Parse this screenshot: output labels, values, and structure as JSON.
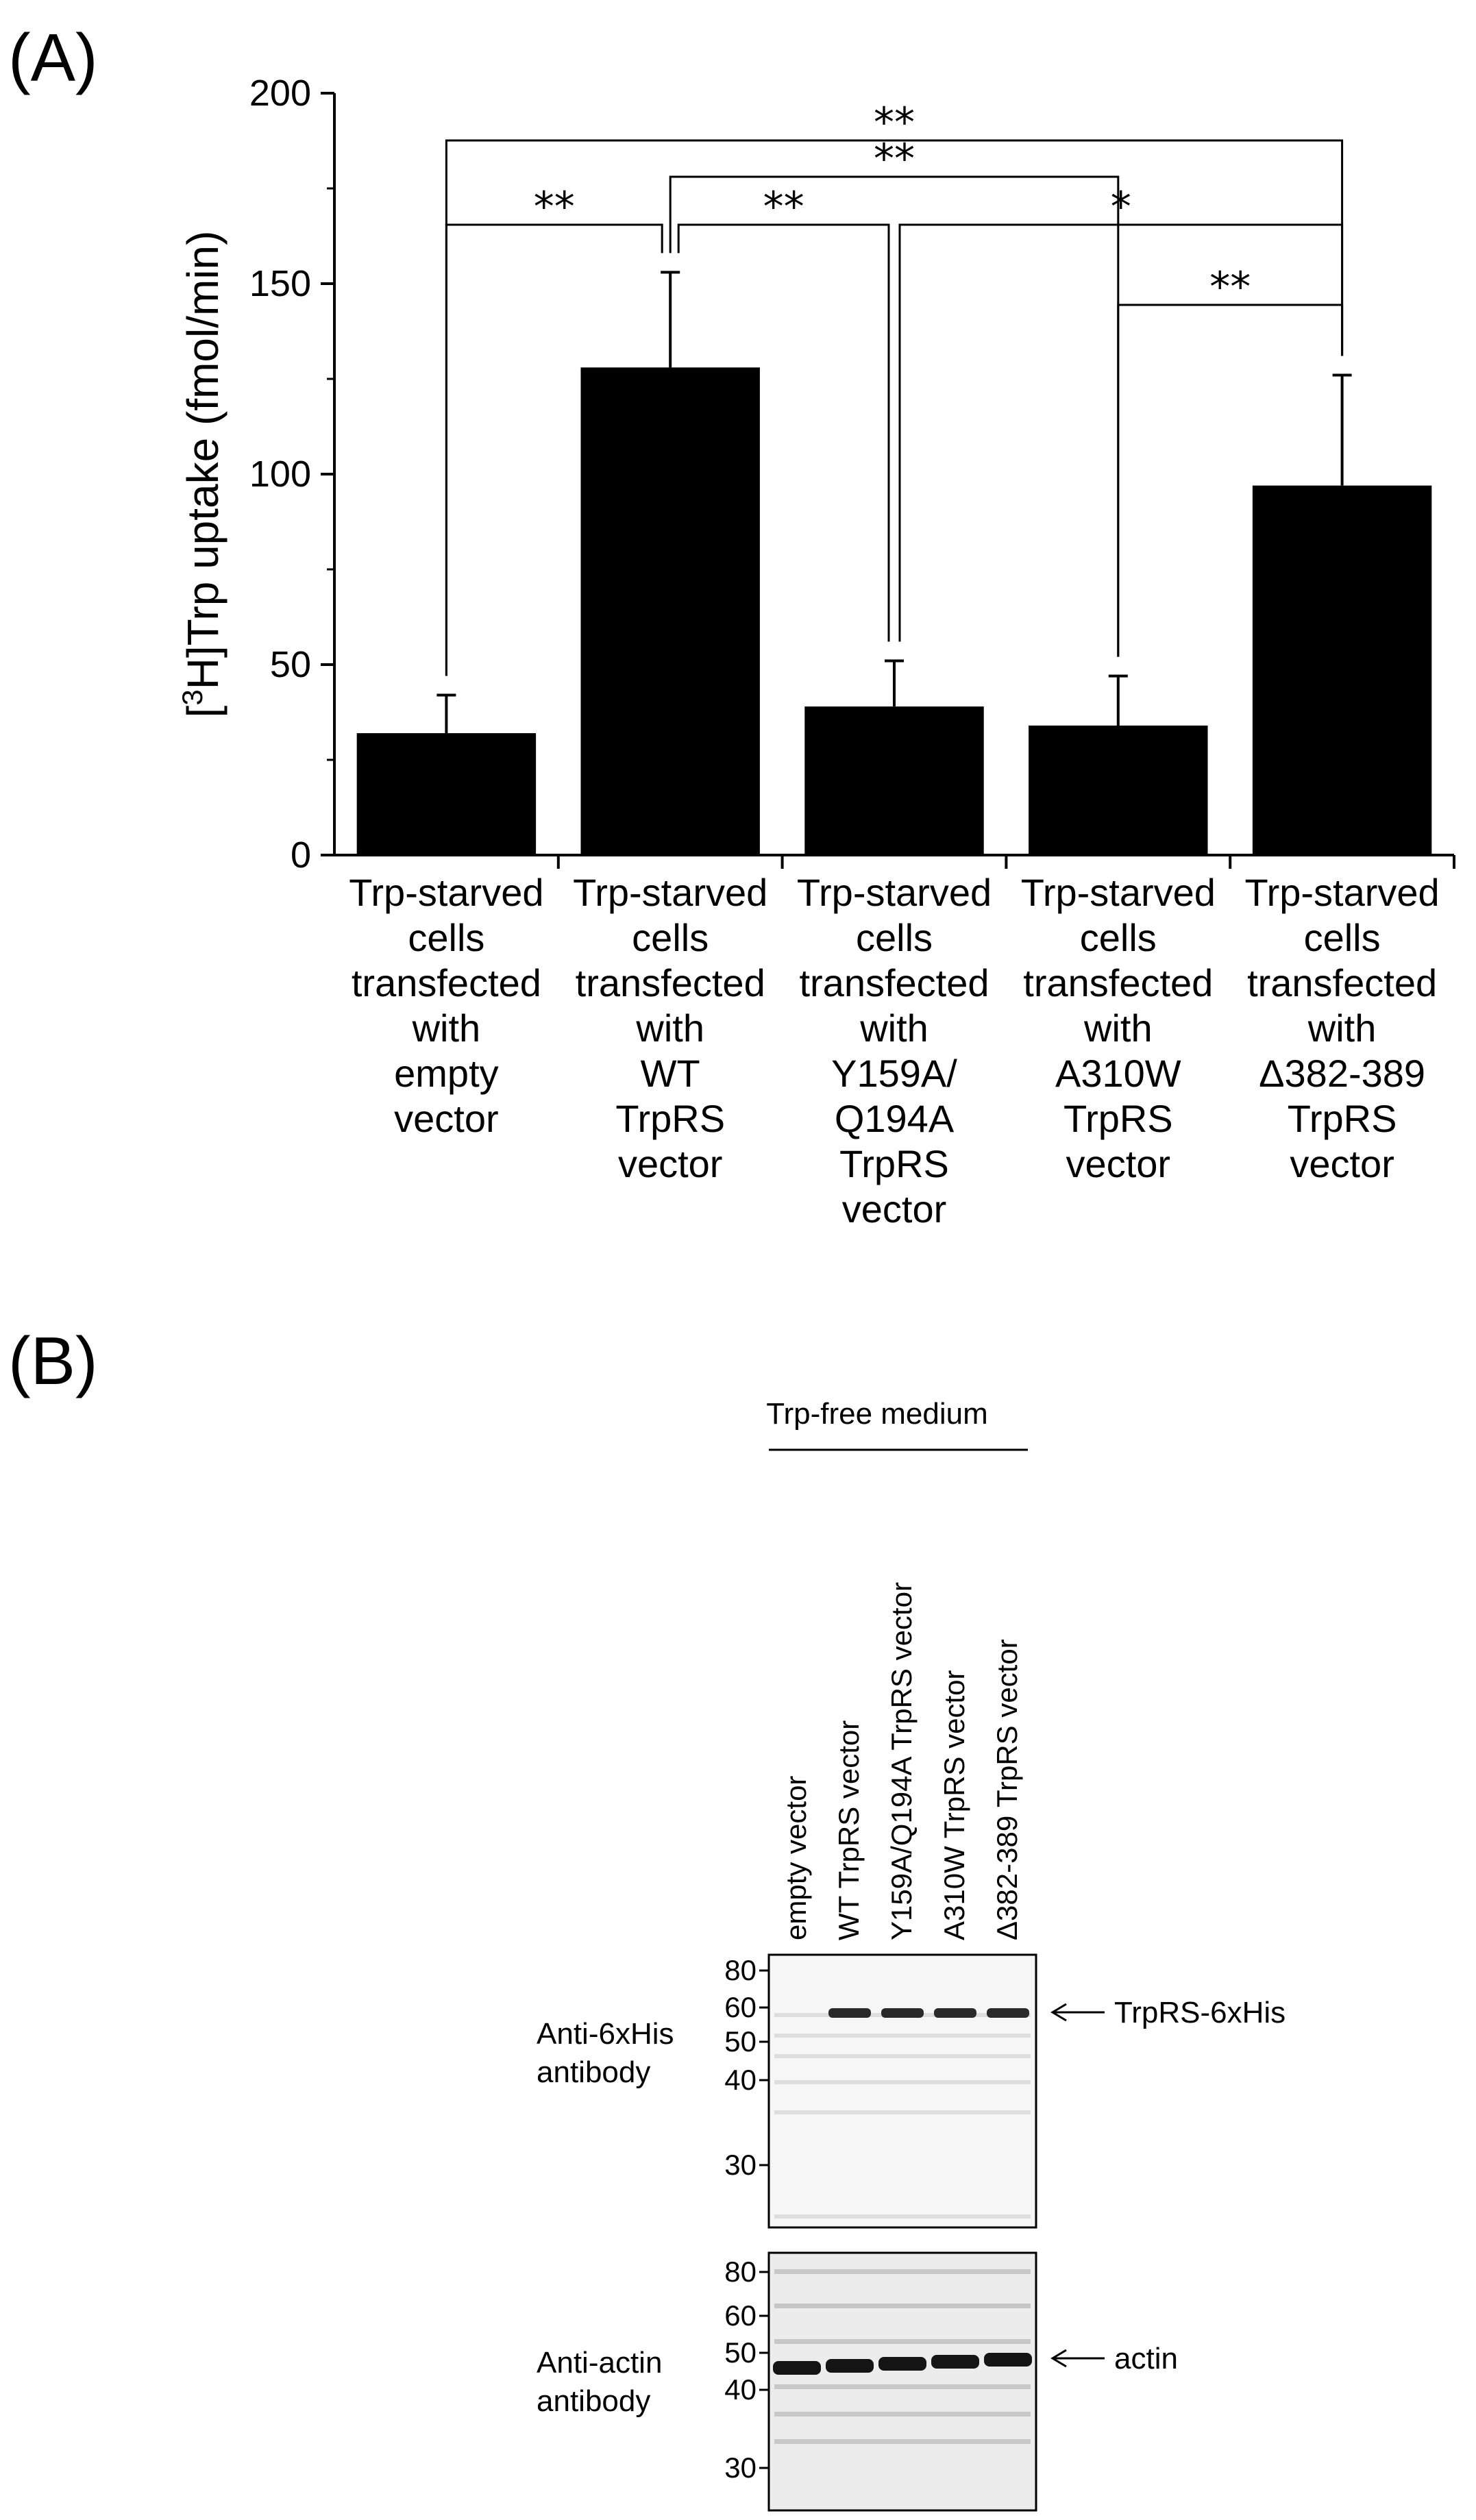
{
  "panel_a_label": "(A)",
  "panel_b_label": "(B)",
  "chart_data": {
    "type": "bar",
    "ylabel_prefix": "[",
    "ylabel_sup": "3",
    "ylabel_rest": "H]Trp uptake (fmol/min)",
    "ylim": [
      0,
      200
    ],
    "yticks": [
      "0",
      "50",
      "100",
      "150",
      "200"
    ],
    "categories": [
      [
        "Trp-starved",
        "cells",
        "transfected",
        "with",
        "empty",
        "vector"
      ],
      [
        "Trp-starved",
        "cells",
        "transfected",
        "with",
        "WT",
        "TrpRS",
        "vector"
      ],
      [
        "Trp-starved",
        "cells",
        "transfected",
        "with",
        "Y159A/",
        "Q194A",
        "TrpRS",
        "vector"
      ],
      [
        "Trp-starved",
        "cells",
        "transfected",
        "with",
        "A310W",
        "TrpRS",
        "vector"
      ],
      [
        "Trp-starved",
        "cells",
        "transfected",
        "with",
        "Δ382-389",
        "TrpRS",
        "vector"
      ]
    ],
    "values": [
      32,
      128,
      39,
      34,
      97
    ],
    "errors": [
      10,
      25,
      12,
      13,
      29
    ],
    "bar_color": "#000000",
    "significance": [
      {
        "from": 0,
        "to": 4,
        "label": "**"
      },
      {
        "from": 1,
        "to": 3,
        "label": "**"
      },
      {
        "from": 0,
        "to": 1,
        "label": "**"
      },
      {
        "from": 1,
        "to": 2,
        "label": "**"
      },
      {
        "from": 2,
        "to": 4,
        "label": "*"
      },
      {
        "from": 3,
        "to": 4,
        "label": "**"
      }
    ]
  },
  "blot": {
    "header": "Trp-free medium",
    "lanes": [
      "empty vector",
      "WT TrpRS vector",
      "Y159A/Q194A TrpRS vector",
      "A310W TrpRS vector",
      "Δ382-389 TrpRS vector"
    ],
    "top_blot": {
      "label_line1": "Anti-6xHis",
      "label_line2": "antibody",
      "markers": [
        "80",
        "60",
        "50",
        "40",
        "30"
      ],
      "band_label": "TrpRS-6xHis"
    },
    "bottom_blot": {
      "label_line1": "Anti-actin",
      "label_line2": "antibody",
      "markers": [
        "80",
        "60",
        "50",
        "40",
        "30"
      ],
      "band_label": "actin"
    }
  }
}
